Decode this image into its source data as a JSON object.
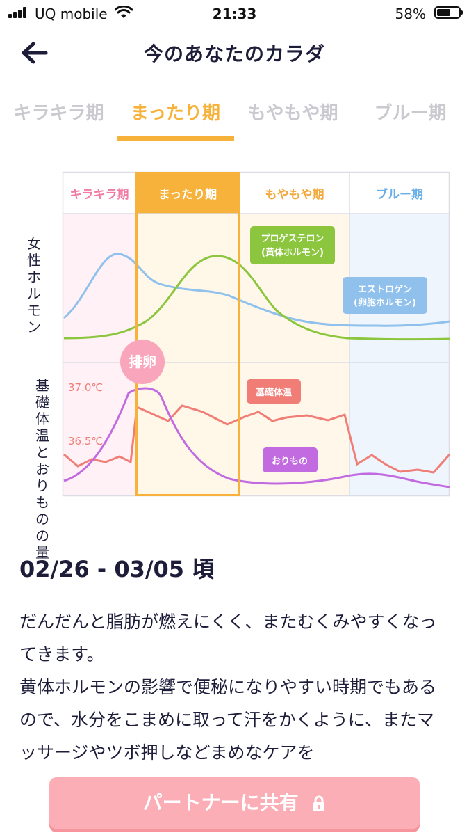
{
  "status_bar": {
    "carrier": "UQ mobile",
    "time": "21:33",
    "battery": "58%"
  },
  "header": {
    "title": "今のあなたのカラダ",
    "back_icon": "arrow-left-icon"
  },
  "tabs": [
    {
      "label": "キラキラ期",
      "active": false
    },
    {
      "label": "まったり期",
      "active": true
    },
    {
      "label": "もやもや期",
      "active": false
    },
    {
      "label": "ブルー期",
      "active": false
    }
  ],
  "chart": {
    "phases": [
      {
        "label": "キラキラ期",
        "color": "#f27ba2",
        "bg": "#fff1f6"
      },
      {
        "label": "まったり期",
        "color": "#ffffff",
        "bg": "#fff8e8",
        "highlight": "#f6b23a"
      },
      {
        "label": "もやもや期",
        "color": "#f2a93b",
        "bg": "#fff8ea"
      },
      {
        "label": "ブルー期",
        "color": "#6aaee8",
        "bg": "#eef5fd"
      }
    ],
    "hormone_label": "女性ホルモン",
    "temp_label": "基礎体温とおりものの量",
    "ovulation_label": "排卵",
    "temp_high": "37.0℃",
    "temp_low": "36.5℃",
    "progesterone_label_1": "プロゲステロン",
    "progesterone_label_2": "(黄体ホルモン)",
    "estrogen_label_1": "エストロゲン",
    "estrogen_label_2": "(卵胞ホルモン)",
    "bbt_label": "基礎体温",
    "discharge_label": "おりもの",
    "colors": {
      "estrogen": "#8fc1ec",
      "progesterone": "#8cc63f",
      "bbt": "#f07d76",
      "discharge": "#c26be0",
      "ovulation": "#f9a5bb"
    }
  },
  "content": {
    "date_range": "02/26 - 03/05 頃",
    "paragraphs": [
      "だんだんと脂肪が燃えにくく、またむくみやすくなってきます。",
      "黄体ホルモンの影響で便秘になりやすい時期でもあるので、水分をこまめに取って汗をかくように、またマッサージやツボ押しなどまめなケアを"
    ]
  },
  "share_button": {
    "label": "パートナーに共有",
    "icon": "lock-icon"
  }
}
